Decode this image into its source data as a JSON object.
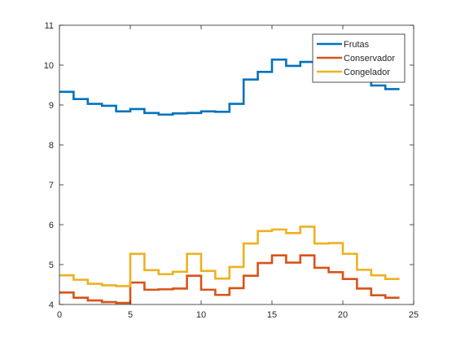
{
  "chart_data": {
    "type": "line",
    "step": true,
    "xlim": [
      0,
      25
    ],
    "ylim": [
      4,
      11
    ],
    "xticks": [
      0,
      5,
      10,
      15,
      20,
      25
    ],
    "yticks": [
      4,
      5,
      6,
      7,
      8,
      9,
      10,
      11
    ],
    "grid": false,
    "legend_position": "top-right",
    "series": [
      {
        "name": "Frutas",
        "color": "#0072BD",
        "x": [
          0,
          1,
          2,
          3,
          4,
          5,
          6,
          7,
          8,
          9,
          10,
          11,
          12,
          13,
          14,
          15,
          16,
          17,
          18,
          19,
          20,
          21,
          22,
          23,
          24
        ],
        "y": [
          9.33,
          9.15,
          9.03,
          8.98,
          8.84,
          8.9,
          8.8,
          8.76,
          8.79,
          8.8,
          8.84,
          8.83,
          9.03,
          9.64,
          9.83,
          10.14,
          9.98,
          10.08,
          10.1,
          10.02,
          10.0,
          9.75,
          9.49,
          9.4,
          9.4
        ]
      },
      {
        "name": "Conservador",
        "color": "#D95319",
        "x": [
          0,
          1,
          2,
          3,
          4,
          5,
          6,
          7,
          8,
          9,
          10,
          11,
          12,
          13,
          14,
          15,
          16,
          17,
          18,
          19,
          20,
          21,
          22,
          23,
          24
        ],
        "y": [
          4.3,
          4.17,
          4.1,
          4.06,
          4.04,
          4.55,
          4.37,
          4.38,
          4.4,
          4.72,
          4.37,
          4.24,
          4.41,
          4.72,
          5.04,
          5.23,
          5.05,
          5.23,
          4.92,
          4.81,
          4.64,
          4.4,
          4.23,
          4.17,
          4.17
        ]
      },
      {
        "name": "Congelador",
        "color": "#EDB120",
        "x": [
          0,
          1,
          2,
          3,
          4,
          5,
          6,
          7,
          8,
          9,
          10,
          11,
          12,
          13,
          14,
          15,
          16,
          17,
          18,
          19,
          20,
          21,
          22,
          23,
          24
        ],
        "y": [
          4.73,
          4.62,
          4.52,
          4.48,
          4.46,
          5.27,
          4.86,
          4.76,
          4.82,
          5.27,
          4.84,
          4.65,
          4.94,
          5.53,
          5.84,
          5.88,
          5.79,
          5.95,
          5.53,
          5.54,
          5.27,
          4.87,
          4.73,
          4.64,
          4.64
        ]
      }
    ]
  }
}
